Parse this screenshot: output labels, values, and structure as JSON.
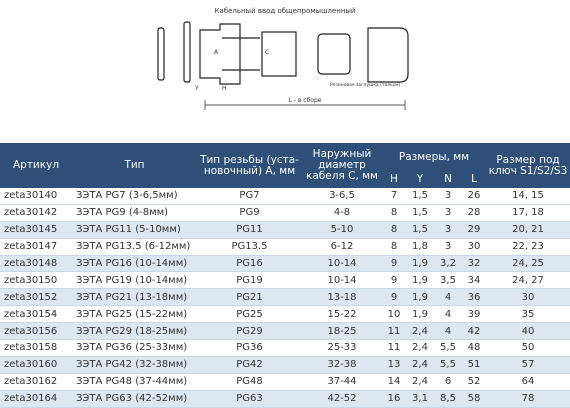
{
  "header": {
    "title": "Кабельный ввод общепромышленный"
  },
  "diagram": {
    "labels": {
      "L": "L - в сборе",
      "H": "H",
      "Y": "Y",
      "A": "A",
      "C": "C",
      "plug": "Резиновая заглушка (тальон)"
    }
  },
  "table": {
    "columns": {
      "article": "Артикул",
      "type": "Тип",
      "thread": "Тип резьбы (уста-новочный) A, мм",
      "diameter": "Наружный диаметр кабеля С, мм",
      "sizes": "Размеры, мм",
      "H": "H",
      "Y": "Y",
      "N": "N",
      "L": "L",
      "key": "Размер под ключ S1/S2/S3"
    },
    "rows": [
      [
        "zeta30140",
        "ЗЭТА PG7 (3-6,5мм)",
        "PG7",
        "3-6,5",
        "7",
        "1,5",
        "3",
        "26",
        "14, 15"
      ],
      [
        "zeta30142",
        "ЗЭТА PG9 (4-8мм)",
        "PG9",
        "4-8",
        "8",
        "1,5",
        "3",
        "28",
        "17, 18"
      ],
      [
        "zeta30145",
        "ЗЭТА PG11 (5-10мм)",
        "PG11",
        "5-10",
        "8",
        "1,5",
        "3",
        "29",
        "20, 21"
      ],
      [
        "zeta30147",
        "ЗЭТА PG13.5 (6-12мм)",
        "PG13.5",
        "6-12",
        "8",
        "1,8",
        "3",
        "30",
        "22, 23"
      ],
      [
        "zeta30148",
        "ЗЭТА PG16 (10-14мм)",
        "PG16",
        "10-14",
        "9",
        "1,9",
        "3,2",
        "32",
        "24, 25"
      ],
      [
        "zeta30150",
        "ЗЭТА PG19 (10-14мм)",
        "PG19",
        "10-14",
        "9",
        "1,9",
        "3,5",
        "34",
        "24, 27"
      ],
      [
        "zeta30152",
        "ЗЭТА PG21 (13-18мм)",
        "PG21",
        "13-18",
        "9",
        "1,9",
        "4",
        "36",
        "30"
      ],
      [
        "zeta30154",
        "ЗЭТА PG25 (15-22мм)",
        "PG25",
        "15-22",
        "10",
        "1,9",
        "4",
        "39",
        "35"
      ],
      [
        "zeta30156",
        "ЗЭТА PG29 (18-25мм)",
        "PG29",
        "18-25",
        "11",
        "2,4",
        "4",
        "42",
        "40"
      ],
      [
        "zeta30158",
        "ЗЭТА PG36 (25-33мм)",
        "PG36",
        "25-33",
        "11",
        "2,4",
        "5,5",
        "48",
        "50"
      ],
      [
        "zeta30160",
        "ЗЭТА PG42 (32-38мм)",
        "PG42",
        "32-38",
        "13",
        "2,4",
        "5,5",
        "51",
        "57"
      ],
      [
        "zeta30162",
        "ЗЭТА PG48 (37-44мм)",
        "PG48",
        "37-44",
        "14",
        "2,4",
        "6",
        "52",
        "64"
      ],
      [
        "zeta30164",
        "ЗЭТА PG63 (42-52мм)",
        "PG63",
        "42-52",
        "16",
        "3,1",
        "8,5",
        "58",
        "78"
      ]
    ]
  }
}
